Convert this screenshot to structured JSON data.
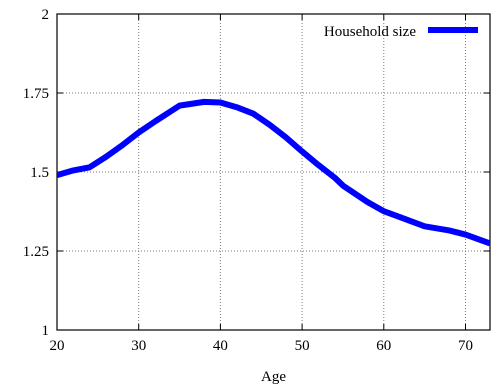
{
  "chart_data": {
    "type": "line",
    "title": "",
    "xlabel": "Age",
    "ylabel": "",
    "xlim": [
      20,
      73
    ],
    "ylim": [
      1,
      2
    ],
    "xticks": [
      20,
      30,
      40,
      50,
      60,
      70
    ],
    "yticks": [
      1,
      1.25,
      1.5,
      1.75,
      2
    ],
    "xtick_labels": [
      "20",
      "30",
      "40",
      "50",
      "60",
      "70"
    ],
    "ytick_labels": [
      "1",
      "1.25",
      "1.5",
      "1.75",
      "2"
    ],
    "grid": true,
    "legend_position": "top-right",
    "series": [
      {
        "name": "Household size",
        "color": "#0000ff",
        "x": [
          20,
          22,
          24,
          26,
          28,
          30,
          32,
          35,
          38,
          40,
          42,
          44,
          46,
          48,
          50,
          52,
          54,
          55,
          58,
          60,
          62,
          65,
          68,
          70,
          73
        ],
        "y": [
          1.49,
          1.505,
          1.515,
          1.548,
          1.585,
          1.625,
          1.66,
          1.71,
          1.722,
          1.72,
          1.705,
          1.685,
          1.65,
          1.61,
          1.565,
          1.522,
          1.482,
          1.457,
          1.405,
          1.376,
          1.357,
          1.328,
          1.315,
          1.302,
          1.274
        ]
      }
    ]
  }
}
